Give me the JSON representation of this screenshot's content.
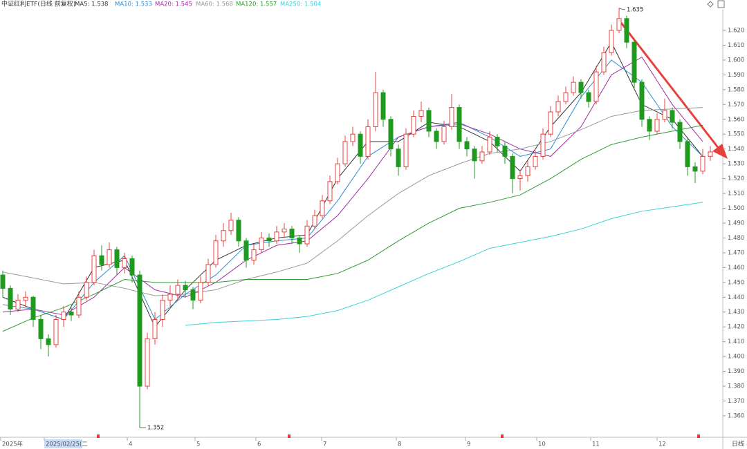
{
  "chart_data": {
    "type": "candlestick",
    "title": "中证红利ETF(日线 前复权)",
    "ylim": [
      1.346,
      1.6405
    ],
    "yticks": [
      {
        "value": 1.36,
        "label": "1.360"
      },
      {
        "value": 1.37,
        "label": "1.370"
      },
      {
        "value": 1.38,
        "label": "1.380"
      },
      {
        "value": 1.39,
        "label": "1.390"
      },
      {
        "value": 1.4,
        "label": "1.400"
      },
      {
        "value": 1.41,
        "label": "1.410"
      },
      {
        "value": 1.42,
        "label": "1.420"
      },
      {
        "value": 1.43,
        "label": "1.430"
      },
      {
        "value": 1.44,
        "label": "1.440"
      },
      {
        "value": 1.45,
        "label": "1.450"
      },
      {
        "value": 1.46,
        "label": "1.460"
      },
      {
        "value": 1.47,
        "label": "1.470"
      },
      {
        "value": 1.48,
        "label": "1.480"
      },
      {
        "value": 1.49,
        "label": "1.490"
      },
      {
        "value": 1.5,
        "label": "1.500"
      },
      {
        "value": 1.51,
        "label": "1.510"
      },
      {
        "value": 1.52,
        "label": "1.520"
      },
      {
        "value": 1.53,
        "label": "1.530"
      },
      {
        "value": 1.54,
        "label": "1.540"
      },
      {
        "value": 1.55,
        "label": "1.550"
      },
      {
        "value": 1.56,
        "label": "1.560"
      },
      {
        "value": 1.57,
        "label": "1.570"
      },
      {
        "value": 1.58,
        "label": "1.580"
      },
      {
        "value": 1.59,
        "label": "1.590"
      },
      {
        "value": 1.6,
        "label": "1.600"
      },
      {
        "value": 1.61,
        "label": "1.610"
      },
      {
        "value": 1.62,
        "label": "1.620"
      }
    ],
    "x_labels": [
      "2025年",
      "2025/02/25(二",
      "4",
      "5",
      "6",
      "7",
      "8",
      "9",
      "10",
      "11",
      "12"
    ],
    "period": "日线",
    "up_color": "#e8403c",
    "down_color": "#1f9a1f",
    "ohlc": [
      [
        1.455,
        1.458,
        1.44,
        1.446
      ],
      [
        1.446,
        1.448,
        1.428,
        1.432
      ],
      [
        1.432,
        1.442,
        1.43,
        1.438
      ],
      [
        1.438,
        1.444,
        1.434,
        1.44
      ],
      [
        1.44,
        1.441,
        1.42,
        1.425
      ],
      [
        1.425,
        1.428,
        1.405,
        1.412
      ],
      [
        1.412,
        1.415,
        1.4,
        1.408
      ],
      [
        1.408,
        1.428,
        1.406,
        1.425
      ],
      [
        1.425,
        1.434,
        1.42,
        1.43
      ],
      [
        1.43,
        1.433,
        1.424,
        1.428
      ],
      [
        1.428,
        1.444,
        1.426,
        1.44
      ],
      [
        1.44,
        1.454,
        1.438,
        1.45
      ],
      [
        1.45,
        1.472,
        1.448,
        1.468
      ],
      [
        1.468,
        1.475,
        1.458,
        1.462
      ],
      [
        1.462,
        1.477,
        1.46,
        1.472
      ],
      [
        1.472,
        1.474,
        1.455,
        1.46
      ],
      [
        1.46,
        1.47,
        1.456,
        1.466
      ],
      [
        1.466,
        1.468,
        1.45,
        1.455
      ],
      [
        1.455,
        1.458,
        1.352,
        1.38
      ],
      [
        1.38,
        1.416,
        1.378,
        1.412
      ],
      [
        1.412,
        1.43,
        1.408,
        1.425
      ],
      [
        1.425,
        1.442,
        1.42,
        1.438
      ],
      [
        1.438,
        1.448,
        1.434,
        1.442
      ],
      [
        1.442,
        1.452,
        1.438,
        1.448
      ],
      [
        1.448,
        1.451,
        1.44,
        1.445
      ],
      [
        1.445,
        1.447,
        1.432,
        1.438
      ],
      [
        1.438,
        1.454,
        1.436,
        1.45
      ],
      [
        1.45,
        1.466,
        1.448,
        1.462
      ],
      [
        1.462,
        1.482,
        1.46,
        1.478
      ],
      [
        1.478,
        1.49,
        1.474,
        1.485
      ],
      [
        1.485,
        1.497,
        1.482,
        1.492
      ],
      [
        1.492,
        1.494,
        1.474,
        1.478
      ],
      [
        1.478,
        1.48,
        1.46,
        1.465
      ],
      [
        1.465,
        1.476,
        1.462,
        1.472
      ],
      [
        1.472,
        1.484,
        1.47,
        1.48
      ],
      [
        1.48,
        1.483,
        1.474,
        1.478
      ],
      [
        1.478,
        1.488,
        1.476,
        1.484
      ],
      [
        1.484,
        1.49,
        1.48,
        1.486
      ],
      [
        1.486,
        1.488,
        1.476,
        1.48
      ],
      [
        1.48,
        1.482,
        1.47,
        1.476
      ],
      [
        1.476,
        1.492,
        1.474,
        1.488
      ],
      [
        1.488,
        1.499,
        1.486,
        1.495
      ],
      [
        1.495,
        1.509,
        1.493,
        1.505
      ],
      [
        1.505,
        1.522,
        1.503,
        1.518
      ],
      [
        1.518,
        1.534,
        1.516,
        1.53
      ],
      [
        1.53,
        1.549,
        1.528,
        1.545
      ],
      [
        1.545,
        1.555,
        1.542,
        1.55
      ],
      [
        1.55,
        1.552,
        1.53,
        1.535
      ],
      [
        1.535,
        1.56,
        1.533,
        1.555
      ],
      [
        1.555,
        1.592,
        1.552,
        1.578
      ],
      [
        1.578,
        1.58,
        1.555,
        1.56
      ],
      [
        1.56,
        1.562,
        1.535,
        1.54
      ],
      [
        1.54,
        1.543,
        1.522,
        1.528
      ],
      [
        1.528,
        1.554,
        1.526,
        1.55
      ],
      [
        1.55,
        1.566,
        1.548,
        1.562
      ],
      [
        1.562,
        1.572,
        1.558,
        1.566
      ],
      [
        1.566,
        1.568,
        1.548,
        1.552
      ],
      [
        1.552,
        1.554,
        1.54,
        1.545
      ],
      [
        1.545,
        1.559,
        1.543,
        1.555
      ],
      [
        1.555,
        1.577,
        1.553,
        1.568
      ],
      [
        1.568,
        1.57,
        1.54,
        1.545
      ],
      [
        1.545,
        1.548,
        1.535,
        1.54
      ],
      [
        1.54,
        1.542,
        1.52,
        1.532
      ],
      [
        1.532,
        1.542,
        1.53,
        1.538
      ],
      [
        1.538,
        1.552,
        1.536,
        1.548
      ],
      [
        1.548,
        1.55,
        1.538,
        1.542
      ],
      [
        1.542,
        1.545,
        1.53,
        1.535
      ],
      [
        1.535,
        1.537,
        1.51,
        1.52
      ],
      [
        1.52,
        1.526,
        1.512,
        1.522
      ],
      [
        1.522,
        1.532,
        1.518,
        1.528
      ],
      [
        1.528,
        1.539,
        1.526,
        1.535
      ],
      [
        1.535,
        1.554,
        1.533,
        1.55
      ],
      [
        1.55,
        1.569,
        1.548,
        1.565
      ],
      [
        1.565,
        1.576,
        1.562,
        1.572
      ],
      [
        1.572,
        1.582,
        1.57,
        1.578
      ],
      [
        1.578,
        1.589,
        1.576,
        1.585
      ],
      [
        1.585,
        1.587,
        1.574,
        1.578
      ],
      [
        1.578,
        1.58,
        1.568,
        1.572
      ],
      [
        1.572,
        1.596,
        1.57,
        1.592
      ],
      [
        1.592,
        1.609,
        1.59,
        1.605
      ],
      [
        1.605,
        1.624,
        1.603,
        1.62
      ],
      [
        1.62,
        1.635,
        1.618,
        1.628
      ],
      [
        1.628,
        1.63,
        1.608,
        1.612
      ],
      [
        1.612,
        1.614,
        1.58,
        1.585
      ],
      [
        1.585,
        1.587,
        1.555,
        1.56
      ],
      [
        1.56,
        1.562,
        1.546,
        1.552
      ],
      [
        1.552,
        1.564,
        1.55,
        1.56
      ],
      [
        1.56,
        1.574,
        1.558,
        1.566
      ],
      [
        1.566,
        1.568,
        1.554,
        1.558
      ],
      [
        1.558,
        1.56,
        1.54,
        1.545
      ],
      [
        1.545,
        1.547,
        1.522,
        1.528
      ],
      [
        1.528,
        1.531,
        1.517,
        1.525
      ],
      [
        1.525,
        1.54,
        1.523,
        1.535
      ],
      [
        1.535,
        1.542,
        1.532,
        1.538
      ]
    ],
    "ma_x": [
      0,
      4,
      8,
      12,
      16,
      20,
      24,
      28,
      32,
      36,
      40,
      44,
      48,
      52,
      56,
      60,
      64,
      68,
      72,
      76,
      80,
      84,
      88,
      92
    ],
    "series": [
      {
        "name": "MA5: 1.538",
        "color": "#333333",
        "values": [
          1.44,
          1.432,
          1.425,
          1.46,
          1.465,
          1.42,
          1.445,
          1.465,
          1.475,
          1.48,
          1.482,
          1.52,
          1.545,
          1.545,
          1.558,
          1.555,
          1.545,
          1.525,
          1.555,
          1.578,
          1.612,
          1.57,
          1.56,
          1.535
        ]
      },
      {
        "name": "MA10: 1.533",
        "color": "#2a8fd6",
        "values": [
          1.435,
          1.432,
          1.425,
          1.45,
          1.468,
          1.425,
          1.442,
          1.455,
          1.475,
          1.478,
          1.48,
          1.505,
          1.535,
          1.548,
          1.555,
          1.558,
          1.548,
          1.535,
          1.54,
          1.575,
          1.6,
          1.585,
          1.555,
          1.535
        ]
      },
      {
        "name": "MA20: 1.545",
        "color": "#a02aa0",
        "values": [
          1.43,
          1.432,
          1.428,
          1.44,
          1.46,
          1.445,
          1.44,
          1.45,
          1.465,
          1.475,
          1.478,
          1.495,
          1.52,
          1.548,
          1.555,
          1.557,
          1.55,
          1.54,
          1.535,
          1.555,
          1.59,
          1.602,
          1.57,
          1.545
        ]
      },
      {
        "name": "MA60: 1.568",
        "color": "#999999",
        "values": [
          1.457,
          1.453,
          1.449,
          1.45,
          1.446,
          1.441,
          1.442,
          1.445,
          1.452,
          1.457,
          1.463,
          1.478,
          1.495,
          1.51,
          1.522,
          1.53,
          1.537,
          1.54,
          1.545,
          1.553,
          1.562,
          1.566,
          1.567,
          1.568
        ]
      },
      {
        "name": "MA120: 1.557",
        "color": "#2e9a2e",
        "values": [
          1.417,
          1.426,
          1.433,
          1.442,
          1.452,
          1.45,
          1.45,
          1.45,
          1.452,
          1.452,
          1.452,
          1.456,
          1.465,
          1.478,
          1.49,
          1.5,
          1.504,
          1.509,
          1.52,
          1.533,
          1.543,
          1.548,
          1.552,
          1.556
        ]
      },
      {
        "name": "MA250: 1.504",
        "color": "#3fd0d8",
        "values": [
          null,
          null,
          null,
          null,
          null,
          null,
          1.421,
          1.423,
          1.424,
          1.425,
          1.427,
          1.431,
          1.438,
          1.447,
          1.456,
          1.464,
          1.473,
          1.477,
          1.481,
          1.486,
          1.493,
          1.498,
          1.501,
          1.504
        ]
      }
    ],
    "annotations": [
      1.635,
      1.352
    ]
  }
}
